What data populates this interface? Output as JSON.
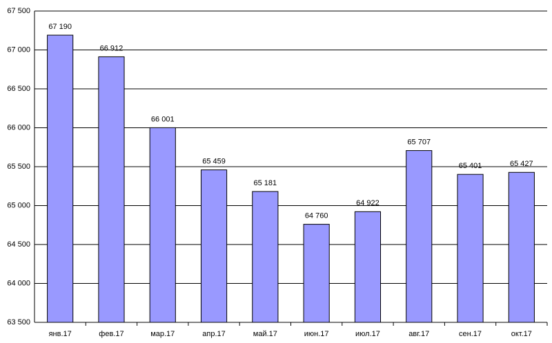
{
  "chart_data": {
    "type": "bar",
    "categories": [
      "янв.17",
      "фев.17",
      "мар.17",
      "апр.17",
      "май.17",
      "июн.17",
      "июл.17",
      "авг.17",
      "сен.17",
      "окт.17"
    ],
    "values": [
      67190,
      66912,
      66001,
      65459,
      65181,
      64760,
      64922,
      65707,
      65401,
      65427
    ],
    "value_labels": [
      "67 190",
      "66 912",
      "66 001",
      "65 459",
      "65 181",
      "64 760",
      "64 922",
      "65 707",
      "65 401",
      "65 427"
    ],
    "color": "#9999ff",
    "ylim": [
      63500,
      67500
    ],
    "yticks": [
      {
        "value": 63500,
        "label": "63 500"
      },
      {
        "value": 64000,
        "label": "64 000"
      },
      {
        "value": 64500,
        "label": "64 500"
      },
      {
        "value": 65000,
        "label": "65 000"
      },
      {
        "value": 65500,
        "label": "65 500"
      },
      {
        "value": 66000,
        "label": "66 000"
      },
      {
        "value": 66500,
        "label": "66 500"
      },
      {
        "value": 67000,
        "label": "67 000"
      },
      {
        "value": 67500,
        "label": "67 500"
      }
    ],
    "grid": true
  }
}
